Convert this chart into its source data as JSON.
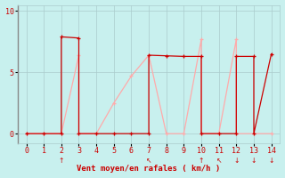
{
  "bg_color": "#c8f0ee",
  "grid_color": "#aacccc",
  "xlabel": "Vent moyen/en rafales ( km/h )",
  "xlim": [
    -0.5,
    14.5
  ],
  "ylim": [
    -0.8,
    10.5
  ],
  "yticks": [
    0,
    5,
    10
  ],
  "xticks": [
    0,
    1,
    2,
    3,
    4,
    5,
    6,
    7,
    8,
    9,
    10,
    11,
    12,
    13,
    14
  ],
  "dark_red": "#cc0000",
  "light_red": "#ffaaaa",
  "dark_red_x": [
    0,
    1,
    2,
    2,
    3,
    3,
    4,
    5,
    6,
    7,
    7,
    8,
    9,
    10,
    10,
    11,
    12,
    12,
    13,
    13,
    14
  ],
  "dark_red_y": [
    0,
    0,
    0,
    7.9,
    7.8,
    0,
    0,
    0,
    0,
    0,
    6.4,
    6.35,
    6.3,
    6.3,
    0,
    0,
    0,
    6.3,
    6.3,
    0,
    6.5
  ],
  "light_red_x": [
    0,
    1,
    2,
    3,
    3,
    4,
    5,
    6,
    7,
    8,
    9,
    10,
    10,
    11,
    12,
    12,
    13,
    14
  ],
  "light_red_y": [
    0,
    0,
    0,
    6.4,
    0,
    0,
    2.5,
    4.7,
    6.4,
    0,
    0,
    7.7,
    0,
    0,
    7.7,
    0,
    0,
    0
  ],
  "arrows_x": [
    2,
    7,
    10,
    11,
    12,
    13,
    14
  ],
  "arrows_sym": [
    "↑",
    "↖",
    "↑",
    "↖",
    "↓",
    "↓",
    "↓"
  ]
}
